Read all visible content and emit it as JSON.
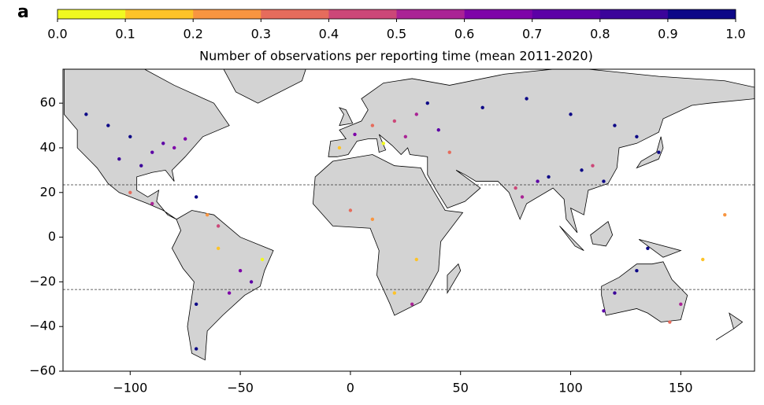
{
  "panel_label": "a",
  "chart_data": {
    "type": "scatter",
    "colorbar": {
      "label": "Number of observations per reporting time (mean 2011-2020)",
      "lim": [
        0,
        1
      ],
      "ticks": [
        {
          "value": 0,
          "label": "0.0"
        },
        0.1,
        0.2,
        0.3,
        0.4,
        0.5,
        0.6,
        0.7,
        0.8,
        0.9,
        {
          "value": 1,
          "label": "1.0"
        }
      ],
      "colors": [
        "#f0f921",
        "#fdc328",
        "#f89540",
        "#e66c5c",
        "#cc4778",
        "#aa2395",
        "#7e03a8",
        "#5c01a6",
        "#3b049a",
        "#0d0887"
      ]
    },
    "xlim": [
      -130.5,
      183.5
    ],
    "ylim": [
      -60,
      75.2
    ],
    "xticks": [
      {
        "value": -100,
        "label": "−100"
      },
      {
        "value": -50,
        "label": "−50"
      },
      0,
      50,
      100,
      150
    ],
    "yticks": [
      60,
      40,
      20,
      0,
      {
        "value": -20,
        "label": "−20"
      },
      {
        "value": -40,
        "label": "−40"
      },
      {
        "value": -60,
        "label": "−60"
      }
    ],
    "reference_lines": [
      23.44,
      -23.44
    ],
    "x": [
      -100,
      -90,
      -80,
      -95,
      -85,
      -110,
      -120,
      -75,
      -105,
      -70,
      -100,
      -90,
      -65,
      -60,
      -50,
      -45,
      -70,
      -55,
      -40,
      -60,
      -70,
      -5,
      2,
      10,
      20,
      30,
      40,
      15,
      25,
      35,
      0,
      10,
      30,
      20,
      28,
      45,
      60,
      80,
      100,
      120,
      130,
      110,
      90,
      75,
      78,
      85,
      105,
      115,
      140,
      135,
      150,
      145,
      120,
      130,
      115,
      170,
      160
    ],
    "y": [
      45,
      38,
      40,
      32,
      42,
      50,
      55,
      44,
      35,
      18,
      20,
      15,
      10,
      -5,
      -15,
      -20,
      -30,
      -25,
      -10,
      5,
      -50,
      40,
      46,
      50,
      52,
      55,
      48,
      42,
      45,
      60,
      12,
      8,
      -10,
      -25,
      -30,
      38,
      58,
      62,
      55,
      50,
      45,
      32,
      27,
      22,
      18,
      25,
      30,
      25,
      38,
      -5,
      -30,
      -38,
      -25,
      -15,
      -33,
      10,
      -10
    ],
    "values": [
      0.9,
      0.7,
      0.6,
      0.8,
      0.75,
      0.95,
      0.9,
      0.65,
      0.85,
      0.95,
      0.3,
      0.5,
      0.2,
      0.1,
      0.6,
      0.7,
      0.9,
      0.65,
      0.05,
      0.4,
      0.95,
      0.15,
      0.6,
      0.3,
      0.45,
      0.5,
      0.7,
      0.05,
      0.55,
      0.9,
      0.35,
      0.25,
      0.15,
      0.1,
      0.5,
      0.3,
      0.95,
      0.9,
      0.95,
      0.9,
      0.95,
      0.45,
      0.95,
      0.4,
      0.55,
      0.75,
      0.95,
      0.95,
      0.95,
      0.9,
      0.55,
      0.3,
      0.85,
      0.9,
      0.7,
      0.2,
      0.1
    ]
  }
}
